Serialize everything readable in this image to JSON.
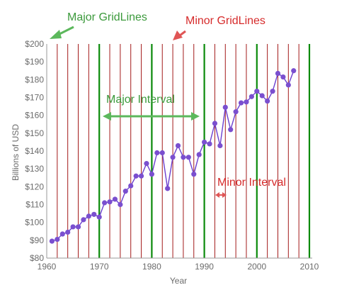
{
  "colors": {
    "major_grid": "#0a8a0a",
    "minor_grid": "#a31a1a",
    "series_line": "#6b3fd0",
    "series_point": "#7a4fcf",
    "axis": "#9a9a9a",
    "ann_green": "#3c9a3c",
    "ann_red": "#d62b2b",
    "arrow_green": "#5cb85c",
    "arrow_red": "#e05555"
  },
  "chart_data": {
    "type": "line",
    "xlabel": "Year",
    "ylabel": "Billions of USD",
    "xlim": [
      1960,
      2010
    ],
    "ylim": [
      80,
      200
    ],
    "x_major_interval": 10,
    "x_minor_interval": 2,
    "x_ticks": [
      1960,
      1970,
      1980,
      1990,
      2000,
      2010
    ],
    "x_tick_labels": [
      "1960",
      "1970",
      "1980",
      "1990",
      "2000",
      "2010"
    ],
    "y_ticks": [
      80,
      90,
      100,
      110,
      120,
      130,
      140,
      150,
      160,
      170,
      180,
      190,
      200
    ],
    "y_tick_labels": [
      "$80",
      "$90",
      "$100",
      "$110",
      "$120",
      "$130",
      "$140",
      "$150",
      "$160",
      "$170",
      "$180",
      "$190",
      "$200"
    ],
    "grid": "vertical major and minor",
    "x": [
      1961,
      1962,
      1963,
      1964,
      1965,
      1966,
      1967,
      1968,
      1969,
      1970,
      1971,
      1972,
      1973,
      1974,
      1975,
      1976,
      1977,
      1978,
      1979,
      1980,
      1981,
      1982,
      1983,
      1984,
      1985,
      1986,
      1987,
      1988,
      1989,
      1990,
      1991,
      1992,
      1993,
      1994,
      1995,
      1996,
      1997,
      1998,
      1999,
      2000,
      2001,
      2002,
      2003,
      2004,
      2005,
      2006,
      2007
    ],
    "series": [
      {
        "values": [
          89.5,
          90.5,
          93.5,
          94.5,
          97.5,
          97.5,
          101.5,
          103.5,
          104.5,
          103,
          111,
          111.5,
          113,
          110,
          117.5,
          120.5,
          126,
          126,
          133,
          127,
          139,
          139,
          119,
          136.5,
          143,
          136.5,
          136.5,
          127,
          138,
          145,
          144,
          155.5,
          143,
          164.5,
          152,
          162,
          167,
          167.5,
          170.5,
          173.5,
          171,
          168,
          173.5,
          183.5,
          181.5,
          177,
          185
        ]
      }
    ],
    "annotations": {
      "major_gridlines": "Major GridLines",
      "minor_gridlines": "Minor GridLines",
      "major_interval": "Major Interval",
      "minor_interval": "Minor Interval"
    }
  }
}
